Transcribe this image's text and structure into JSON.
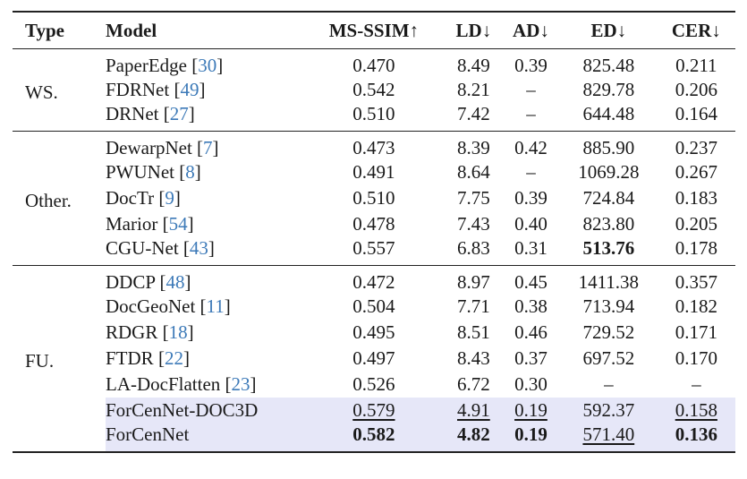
{
  "headers": {
    "type": "Type",
    "model": "Model",
    "ms_ssim": "MS-SSIM↑",
    "ld": "LD↓",
    "ad": "AD↓",
    "ed": "ED↓",
    "cer": "CER↓"
  },
  "groups": [
    {
      "label": "WS.",
      "rows": [
        {
          "name": "PaperEdge",
          "ref": "30",
          "ms_ssim": "0.470",
          "ld": "8.49",
          "ad": "0.39",
          "ed": "825.48",
          "cer": "0.211"
        },
        {
          "name": "FDRNet",
          "ref": "49",
          "ms_ssim": "0.542",
          "ld": "8.21",
          "ad": "–",
          "ed": "829.78",
          "cer": "0.206"
        },
        {
          "name": "DRNet",
          "ref": "27",
          "ms_ssim": "0.510",
          "ld": "7.42",
          "ad": "–",
          "ed": "644.48",
          "cer": "0.164"
        }
      ]
    },
    {
      "label": "Other.",
      "rows": [
        {
          "name": "DewarpNet",
          "ref": "7",
          "ms_ssim": "0.473",
          "ld": "8.39",
          "ad": "0.42",
          "ed": "885.90",
          "cer": "0.237"
        },
        {
          "name": "PWUNet",
          "ref": "8",
          "ms_ssim": "0.491",
          "ld": "8.64",
          "ad": "–",
          "ed": "1069.28",
          "cer": "0.267"
        },
        {
          "name": "DocTr",
          "ref": "9",
          "ms_ssim": "0.510",
          "ld": "7.75",
          "ad": "0.39",
          "ed": "724.84",
          "cer": "0.183"
        },
        {
          "name": "Marior",
          "ref": "54",
          "ms_ssim": "0.478",
          "ld": "7.43",
          "ad": "0.40",
          "ed": "823.80",
          "cer": "0.205"
        },
        {
          "name": "CGU-Net",
          "ref": "43",
          "ms_ssim": "0.557",
          "ld": "6.83",
          "ad": "0.31",
          "ed": "513.76",
          "cer": "0.178"
        }
      ]
    },
    {
      "label": "FU.",
      "rows": [
        {
          "name": "DDCP",
          "ref": "48",
          "ms_ssim": "0.472",
          "ld": "8.97",
          "ad": "0.45",
          "ed": "1411.38",
          "cer": "0.357"
        },
        {
          "name": "DocGeoNet",
          "ref": "11",
          "ms_ssim": "0.504",
          "ld": "7.71",
          "ad": "0.38",
          "ed": "713.94",
          "cer": "0.182"
        },
        {
          "name": "RDGR",
          "ref": "18",
          "ms_ssim": "0.495",
          "ld": "8.51",
          "ad": "0.46",
          "ed": "729.52",
          "cer": "0.171"
        },
        {
          "name": "FTDR",
          "ref": "22",
          "ms_ssim": "0.497",
          "ld": "8.43",
          "ad": "0.37",
          "ed": "697.52",
          "cer": "0.170"
        },
        {
          "name": "LA-DocFlatten",
          "ref": "23",
          "ms_ssim": "0.526",
          "ld": "6.72",
          "ad": "0.30",
          "ed": "–",
          "cer": "–"
        },
        {
          "name": "ForCenNet-DOC3D",
          "ref": "",
          "ms_ssim": "0.579",
          "ld": "4.91",
          "ad": "0.19",
          "ed": "592.37",
          "cer": "0.158"
        },
        {
          "name": "ForCenNet",
          "ref": "",
          "ms_ssim": "0.582",
          "ld": "4.82",
          "ad": "0.19",
          "ed": "571.40",
          "cer": "0.136"
        }
      ]
    }
  ],
  "styles": {
    "ref_color": "#3d7ab8",
    "highlight_color": "#e6e7f8",
    "bold_cells": [
      "Other.|CGU-Net|ed",
      "FU.|ForCenNet|ms_ssim",
      "FU.|ForCenNet|ld",
      "FU.|ForCenNet|ad",
      "FU.|ForCenNet|cer"
    ],
    "underline_cells": [
      "FU.|ForCenNet-DOC3D|ms_ssim",
      "FU.|ForCenNet-DOC3D|ld",
      "FU.|ForCenNet-DOC3D|ad",
      "FU.|ForCenNet-DOC3D|cer",
      "FU.|ForCenNet|ed"
    ],
    "highlight_rows": [
      "FU.|ForCenNet-DOC3D",
      "FU.|ForCenNet"
    ]
  }
}
